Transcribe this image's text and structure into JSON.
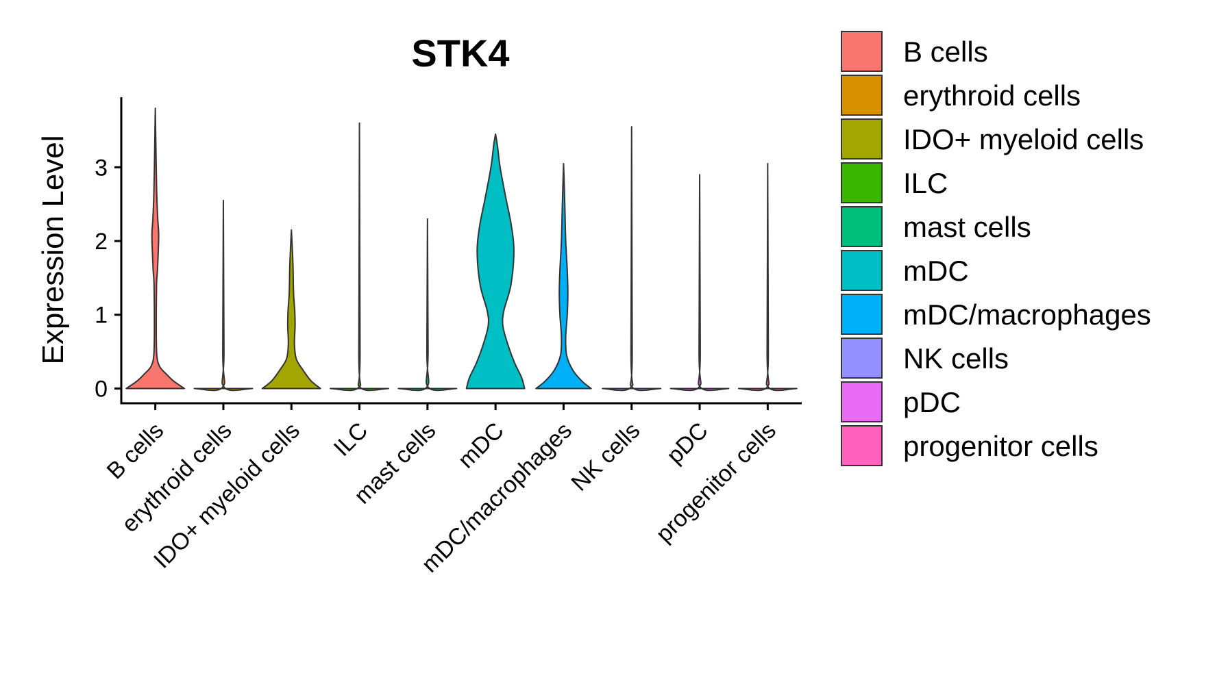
{
  "chart_data": {
    "type": "violin",
    "title": "STK4",
    "xlabel": "",
    "ylabel": "Expression Level",
    "ylim": [
      -0.2,
      3.95
    ],
    "yticks": [
      0,
      1,
      2,
      3
    ],
    "categories": [
      "B cells",
      "erythroid cells",
      "IDO+ myeloid cells",
      "ILC",
      "mast cells",
      "mDC",
      "mDC/macrophages",
      "NK cells",
      "pDC",
      "progenitor cells"
    ],
    "colors": [
      "#F8766D",
      "#D89000",
      "#A3A500",
      "#39B600",
      "#00BF7D",
      "#00BFC4",
      "#00B0F6",
      "#9590FF",
      "#E76BF3",
      "#FF62BC"
    ],
    "violins": [
      {
        "name": "B cells",
        "max": 3.8,
        "profile": [
          [
            0,
            0.95
          ],
          [
            0.1,
            0.6
          ],
          [
            0.2,
            0.35
          ],
          [
            0.3,
            0.14
          ],
          [
            0.45,
            0.05
          ],
          [
            0.8,
            0.03
          ],
          [
            1.4,
            0.04
          ],
          [
            1.6,
            0.07
          ],
          [
            1.9,
            0.1
          ],
          [
            2.1,
            0.11
          ],
          [
            2.3,
            0.08
          ],
          [
            2.6,
            0.05
          ],
          [
            3.0,
            0.03
          ],
          [
            3.8,
            0.0
          ]
        ]
      },
      {
        "name": "erythroid cells",
        "max": 2.55,
        "profile": [
          [
            0,
            0.95
          ],
          [
            0.015,
            0.03
          ],
          [
            0.5,
            0.02
          ],
          [
            2.55,
            0.0
          ]
        ]
      },
      {
        "name": "IDO+ myeloid cells",
        "max": 2.15,
        "profile": [
          [
            0,
            0.95
          ],
          [
            0.1,
            0.65
          ],
          [
            0.25,
            0.38
          ],
          [
            0.4,
            0.16
          ],
          [
            0.6,
            0.1
          ],
          [
            0.85,
            0.12
          ],
          [
            1.05,
            0.11
          ],
          [
            1.3,
            0.07
          ],
          [
            1.7,
            0.05
          ],
          [
            2.15,
            0.0
          ]
        ]
      },
      {
        "name": "ILC",
        "max": 3.6,
        "profile": [
          [
            0,
            0.95
          ],
          [
            0.015,
            0.03
          ],
          [
            0.5,
            0.02
          ],
          [
            3.6,
            0.0
          ]
        ]
      },
      {
        "name": "mast cells",
        "max": 2.3,
        "profile": [
          [
            0,
            0.95
          ],
          [
            0.015,
            0.03
          ],
          [
            0.5,
            0.02
          ],
          [
            2.3,
            0.0
          ]
        ]
      },
      {
        "name": "mDC",
        "max": 3.45,
        "profile": [
          [
            0,
            0.95
          ],
          [
            0.15,
            0.85
          ],
          [
            0.35,
            0.62
          ],
          [
            0.6,
            0.4
          ],
          [
            0.85,
            0.24
          ],
          [
            1.05,
            0.27
          ],
          [
            1.4,
            0.5
          ],
          [
            1.85,
            0.6
          ],
          [
            2.2,
            0.52
          ],
          [
            2.6,
            0.33
          ],
          [
            3.0,
            0.15
          ],
          [
            3.3,
            0.06
          ],
          [
            3.45,
            0.0
          ]
        ]
      },
      {
        "name": "mDC/macrophages",
        "max": 3.05,
        "profile": [
          [
            0,
            0.9
          ],
          [
            0.1,
            0.6
          ],
          [
            0.25,
            0.3
          ],
          [
            0.45,
            0.1
          ],
          [
            0.7,
            0.07
          ],
          [
            1.0,
            0.12
          ],
          [
            1.3,
            0.14
          ],
          [
            1.6,
            0.12
          ],
          [
            2.0,
            0.07
          ],
          [
            2.5,
            0.04
          ],
          [
            3.05,
            0.0
          ]
        ]
      },
      {
        "name": "NK cells",
        "max": 3.55,
        "profile": [
          [
            0,
            0.95
          ],
          [
            0.015,
            0.03
          ],
          [
            0.5,
            0.02
          ],
          [
            3.55,
            0.0
          ]
        ]
      },
      {
        "name": "pDC",
        "max": 2.9,
        "profile": [
          [
            0,
            0.95
          ],
          [
            0.015,
            0.03
          ],
          [
            0.5,
            0.02
          ],
          [
            2.9,
            0.0
          ]
        ]
      },
      {
        "name": "progenitor cells",
        "max": 3.05,
        "profile": [
          [
            0,
            0.95
          ],
          [
            0.015,
            0.03
          ],
          [
            0.5,
            0.02
          ],
          [
            3.05,
            0.0
          ]
        ]
      }
    ],
    "legend": {
      "position": "right",
      "entries": [
        "B cells",
        "erythroid cells",
        "IDO+ myeloid cells",
        "ILC",
        "mast cells",
        "mDC",
        "mDC/macrophages",
        "NK cells",
        "pDC",
        "progenitor cells"
      ]
    },
    "grid": false
  }
}
